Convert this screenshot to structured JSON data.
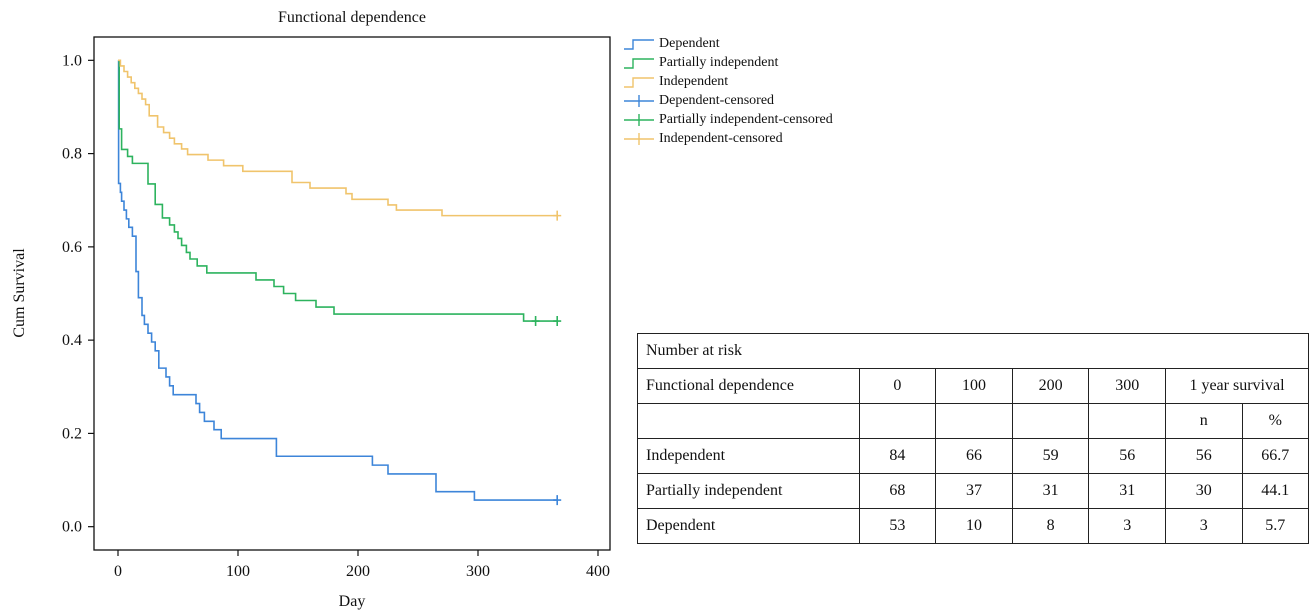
{
  "chart_data": {
    "type": "line",
    "title": "Functional dependence",
    "xlabel": "Day",
    "ylabel": "Cum Survival",
    "xlim": [
      -20,
      410
    ],
    "ylim": [
      -0.05,
      1.05
    ],
    "xticks": [
      "0",
      "100",
      "200",
      "300",
      "400"
    ],
    "yticks": [
      "0.0",
      "0.2",
      "0.4",
      "0.6",
      "0.8",
      "1.0"
    ],
    "legend_position": "right-top",
    "series": [
      {
        "name": "Dependent",
        "color": "#3d85d9",
        "x": [
          0,
          0.5,
          2,
          3,
          5,
          7,
          9,
          12,
          15,
          17,
          20,
          22,
          25,
          28,
          31,
          34,
          40,
          43,
          46,
          52,
          65,
          68,
          72,
          80,
          86,
          130,
          132,
          212,
          225,
          265,
          297,
          366
        ],
        "y": [
          1.0,
          0.736,
          0.717,
          0.698,
          0.679,
          0.66,
          0.642,
          0.623,
          0.547,
          0.491,
          0.453,
          0.434,
          0.415,
          0.396,
          0.377,
          0.34,
          0.321,
          0.302,
          0.283,
          0.283,
          0.264,
          0.245,
          0.226,
          0.208,
          0.189,
          0.189,
          0.151,
          0.132,
          0.113,
          0.075,
          0.057,
          0.057
        ],
        "censored": [
          {
            "x": 366,
            "y": 0.057
          }
        ]
      },
      {
        "name": "Partially independent",
        "color": "#2db35e",
        "x": [
          0,
          1,
          3,
          8,
          12,
          25,
          31,
          37,
          43,
          47,
          50,
          53,
          57,
          60,
          66,
          74,
          80,
          88,
          115,
          130,
          138,
          148,
          165,
          180,
          338,
          366
        ],
        "y": [
          1.0,
          0.853,
          0.809,
          0.794,
          0.779,
          0.735,
          0.691,
          0.662,
          0.647,
          0.632,
          0.618,
          0.603,
          0.588,
          0.574,
          0.559,
          0.544,
          0.544,
          0.544,
          0.529,
          0.515,
          0.5,
          0.485,
          0.471,
          0.456,
          0.441,
          0.441
        ],
        "censored": [
          {
            "x": 348,
            "y": 0.441
          },
          {
            "x": 366,
            "y": 0.441
          }
        ]
      },
      {
        "name": "Independent",
        "color": "#f0c46c",
        "x": [
          0,
          2,
          5,
          8,
          11,
          14,
          17,
          20,
          23,
          26,
          33,
          38,
          43,
          47,
          53,
          58,
          65,
          75,
          88,
          104,
          118,
          145,
          160,
          190,
          195,
          225,
          232,
          270,
          366
        ],
        "y": [
          1.0,
          0.988,
          0.976,
          0.964,
          0.952,
          0.94,
          0.929,
          0.917,
          0.905,
          0.881,
          0.857,
          0.845,
          0.833,
          0.821,
          0.81,
          0.798,
          0.798,
          0.786,
          0.774,
          0.762,
          0.762,
          0.738,
          0.726,
          0.714,
          0.702,
          0.69,
          0.679,
          0.667,
          0.667
        ],
        "censored": [
          {
            "x": 366,
            "y": 0.667
          }
        ]
      }
    ]
  },
  "legend": {
    "entries": [
      {
        "label": "Dependent",
        "color": "#3d85d9",
        "kind": "step"
      },
      {
        "label": "Partially independent",
        "color": "#2db35e",
        "kind": "step"
      },
      {
        "label": "Independent",
        "color": "#f0c46c",
        "kind": "step"
      },
      {
        "label": "Dependent-censored",
        "color": "#3d85d9",
        "kind": "cross"
      },
      {
        "label": "Partially independent-censored",
        "color": "#2db35e",
        "kind": "cross"
      },
      {
        "label": "Independent-censored",
        "color": "#f0c46c",
        "kind": "cross"
      }
    ]
  },
  "risk_table": {
    "caption": "Number at risk",
    "header": [
      "Functional dependence",
      "0",
      "100",
      "200",
      "300",
      "1 year survival"
    ],
    "subheader": [
      "n",
      "%"
    ],
    "rows": [
      [
        "Independent",
        "84",
        "66",
        "59",
        "56",
        "56",
        "66.7"
      ],
      [
        "Partially independent",
        "68",
        "37",
        "31",
        "31",
        "30",
        "44.1"
      ],
      [
        "Dependent",
        "53",
        "10",
        "8",
        "3",
        "3",
        "5.7"
      ]
    ]
  }
}
